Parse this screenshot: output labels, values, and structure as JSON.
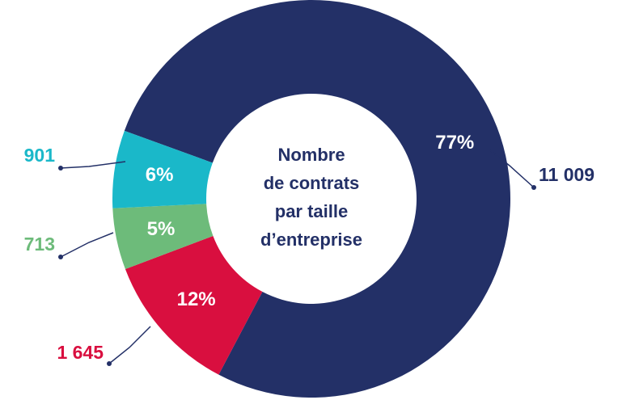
{
  "chart_data": {
    "type": "donut",
    "center_label": [
      "Nombre",
      "de contrats",
      "par taille",
      "d’entreprise"
    ],
    "categories": [
      null,
      null,
      null,
      null
    ],
    "values": [
      11009,
      1645,
      713,
      901
    ],
    "value_labels": [
      "11 009",
      "1 645",
      "713",
      "901"
    ],
    "percentages": [
      77,
      12,
      5,
      6
    ],
    "percentage_labels": [
      "77%",
      "12%",
      "5%",
      "6%"
    ],
    "colors": [
      "#233067",
      "#d90f3f",
      "#6dbb7a",
      "#1ab8c9"
    ]
  }
}
